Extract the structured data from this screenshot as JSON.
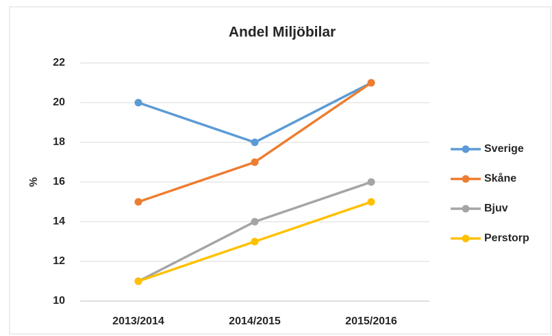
{
  "chart_data": {
    "type": "line",
    "title": "Andel Miljöbilar",
    "y_label": "%",
    "categories": [
      "2013/2014",
      "2014/2015",
      "2015/2016"
    ],
    "series": [
      {
        "name": "Sverige",
        "color": "#5b9bd5",
        "values": [
          20,
          18,
          21
        ]
      },
      {
        "name": "Skåne",
        "color": "#ed7d31",
        "values": [
          15,
          17,
          21
        ]
      },
      {
        "name": "Bjuv",
        "color": "#a5a5a5",
        "values": [
          11,
          14,
          16
        ]
      },
      {
        "name": "Perstorp",
        "color": "#ffc000",
        "values": [
          11,
          13,
          15
        ]
      }
    ],
    "ylim": [
      10,
      22
    ],
    "yticks": [
      10,
      12,
      14,
      16,
      18,
      20,
      22
    ],
    "grid": true,
    "legend": "right"
  }
}
